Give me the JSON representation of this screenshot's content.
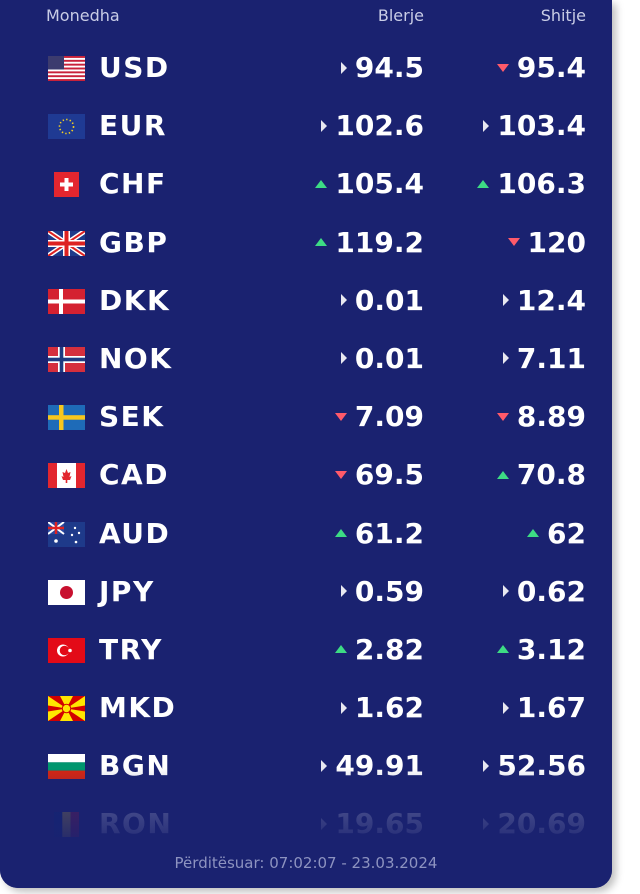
{
  "header": {
    "currency_label": "Monedha",
    "buy_label": "Blerje",
    "sell_label": "Shitje"
  },
  "colors": {
    "background": "#1a2270",
    "up": "#3ddc84",
    "down": "#ff5a6a",
    "same": "#e8e8f0"
  },
  "rates": [
    {
      "code": "USD",
      "flag": "us-flag-icon",
      "buy": "94.5",
      "buy_trend": "same",
      "sell": "95.4",
      "sell_trend": "down"
    },
    {
      "code": "EUR",
      "flag": "eu-flag-icon",
      "buy": "102.6",
      "buy_trend": "same",
      "sell": "103.4",
      "sell_trend": "same"
    },
    {
      "code": "CHF",
      "flag": "ch-flag-icon",
      "buy": "105.4",
      "buy_trend": "up",
      "sell": "106.3",
      "sell_trend": "up"
    },
    {
      "code": "GBP",
      "flag": "gb-flag-icon",
      "buy": "119.2",
      "buy_trend": "up",
      "sell": "120",
      "sell_trend": "down"
    },
    {
      "code": "DKK",
      "flag": "dk-flag-icon",
      "buy": "0.01",
      "buy_trend": "same",
      "sell": "12.4",
      "sell_trend": "same"
    },
    {
      "code": "NOK",
      "flag": "no-flag-icon",
      "buy": "0.01",
      "buy_trend": "same",
      "sell": "7.11",
      "sell_trend": "same"
    },
    {
      "code": "SEK",
      "flag": "se-flag-icon",
      "buy": "7.09",
      "buy_trend": "down",
      "sell": "8.89",
      "sell_trend": "down"
    },
    {
      "code": "CAD",
      "flag": "ca-flag-icon",
      "buy": "69.5",
      "buy_trend": "down",
      "sell": "70.8",
      "sell_trend": "up"
    },
    {
      "code": "AUD",
      "flag": "au-flag-icon",
      "buy": "61.2",
      "buy_trend": "up",
      "sell": "62",
      "sell_trend": "up"
    },
    {
      "code": "JPY",
      "flag": "jp-flag-icon",
      "buy": "0.59",
      "buy_trend": "same",
      "sell": "0.62",
      "sell_trend": "same"
    },
    {
      "code": "TRY",
      "flag": "tr-flag-icon",
      "buy": "2.82",
      "buy_trend": "up",
      "sell": "3.12",
      "sell_trend": "up"
    },
    {
      "code": "MKD",
      "flag": "mk-flag-icon",
      "buy": "1.62",
      "buy_trend": "same",
      "sell": "1.67",
      "sell_trend": "same"
    },
    {
      "code": "BGN",
      "flag": "bg-flag-icon",
      "buy": "49.91",
      "buy_trend": "same",
      "sell": "52.56",
      "sell_trend": "same"
    },
    {
      "code": "RON",
      "flag": "ro-flag-icon",
      "buy": "19.65",
      "buy_trend": "same",
      "sell": "20.69",
      "sell_trend": "same"
    }
  ],
  "footer": {
    "updated": "Përditësuar: 07:02:07 - 23.03.2024"
  }
}
